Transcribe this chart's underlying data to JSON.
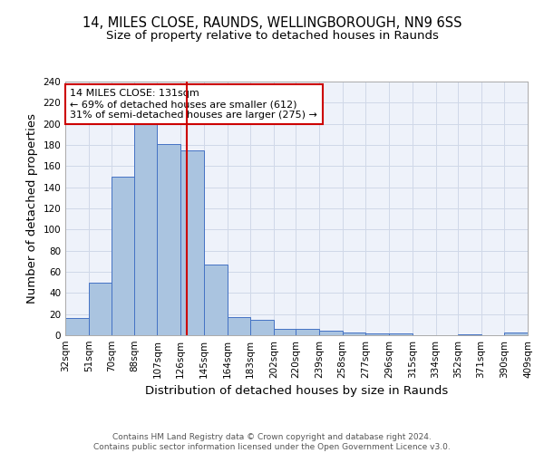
{
  "title1": "14, MILES CLOSE, RAUNDS, WELLINGBOROUGH, NN9 6SS",
  "title2": "Size of property relative to detached houses in Raunds",
  "xlabel": "Distribution of detached houses by size in Raunds",
  "ylabel": "Number of detached properties",
  "footnote1": "Contains HM Land Registry data © Crown copyright and database right 2024.",
  "footnote2": "Contains public sector information licensed under the Open Government Licence v3.0.",
  "annotation_line1": "14 MILES CLOSE: 131sqm",
  "annotation_line2": "← 69% of detached houses are smaller (612)",
  "annotation_line3": "31% of semi-detached houses are larger (275) →",
  "property_size": 131,
  "bar_left_edges": [
    32,
    51,
    70,
    88,
    107,
    126,
    145,
    164,
    183,
    202,
    220,
    239,
    258,
    277,
    296,
    315,
    334,
    352,
    371,
    390
  ],
  "bar_widths": [
    19,
    19,
    18,
    19,
    19,
    19,
    19,
    19,
    19,
    18,
    19,
    19,
    19,
    19,
    19,
    19,
    18,
    19,
    19,
    19
  ],
  "bar_heights": [
    16,
    50,
    150,
    204,
    181,
    175,
    67,
    17,
    15,
    6,
    6,
    4,
    3,
    2,
    2,
    0,
    0,
    1,
    0,
    3
  ],
  "bar_color": "#aac4e0",
  "bar_edge_color": "#4472c4",
  "vline_x": 131,
  "vline_color": "#cc0000",
  "xlim": [
    32,
    409
  ],
  "ylim": [
    0,
    240
  ],
  "yticks": [
    0,
    20,
    40,
    60,
    80,
    100,
    120,
    140,
    160,
    180,
    200,
    220,
    240
  ],
  "xtick_labels": [
    "32sqm",
    "51sqm",
    "70sqm",
    "88sqm",
    "107sqm",
    "126sqm",
    "145sqm",
    "164sqm",
    "183sqm",
    "202sqm",
    "220sqm",
    "239sqm",
    "258sqm",
    "277sqm",
    "296sqm",
    "315sqm",
    "334sqm",
    "352sqm",
    "371sqm",
    "390sqm",
    "409sqm"
  ],
  "xtick_positions": [
    32,
    51,
    70,
    88,
    107,
    126,
    145,
    164,
    183,
    202,
    220,
    239,
    258,
    277,
    296,
    315,
    334,
    352,
    371,
    390,
    409
  ],
  "grid_color": "#d0d8e8",
  "background_color": "#eef2fa",
  "annotation_box_color": "#cc0000",
  "title_fontsize": 10.5,
  "subtitle_fontsize": 9.5,
  "axis_label_fontsize": 9.5,
  "tick_fontsize": 7.5,
  "footnote_fontsize": 6.5
}
